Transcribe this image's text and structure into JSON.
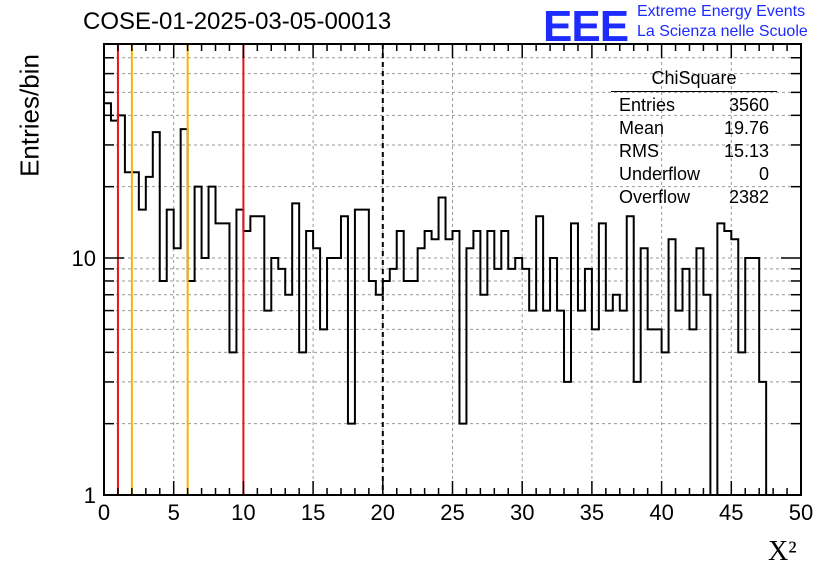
{
  "title": "COSE-01-2025-03-05-00013",
  "logo": {
    "text": "EEE",
    "line1": "Extreme Energy Events",
    "line2": "La Scienza nelle Scuole",
    "color": "#1e2bff"
  },
  "colors": {
    "red": "#e8141c",
    "yellow": "#f7b500",
    "black": "#000000",
    "grid": "#999999"
  },
  "stats": {
    "title": "ChiSquare",
    "rows": [
      {
        "label": "Entries",
        "value": "3560"
      },
      {
        "label": "Mean",
        "value": "19.76"
      },
      {
        "label": "RMS",
        "value": "15.13"
      },
      {
        "label": "Underflow",
        "value": "0"
      },
      {
        "label": "Overflow",
        "value": "2382"
      }
    ]
  },
  "chart_data": {
    "type": "histogram",
    "title": "COSE-01-2025-03-05-00013",
    "xlabel": "X²",
    "ylabel": "Entries/bin",
    "xlim": [
      0,
      50
    ],
    "ylim": [
      1,
      80
    ],
    "yscale": "log",
    "grid": true,
    "bin_width": 0.5,
    "xticks": [
      0,
      5,
      10,
      15,
      20,
      25,
      30,
      35,
      40,
      45,
      50
    ],
    "xtick_labels": [
      "0",
      "5",
      "10",
      "15",
      "20",
      "25",
      "30",
      "35",
      "40",
      "45",
      "50"
    ],
    "yticks": [
      1,
      10
    ],
    "ytick_labels": [
      "1",
      "10"
    ],
    "values": [
      45,
      38,
      40,
      23,
      23,
      16,
      22,
      34,
      8,
      16,
      11,
      35,
      8,
      20,
      10,
      20,
      14,
      14,
      4,
      16,
      13,
      15,
      15,
      6,
      10,
      9,
      7,
      17,
      4,
      13,
      11,
      5,
      10,
      10,
      15,
      2,
      16,
      16,
      8,
      7,
      8,
      9,
      13,
      8,
      8,
      11,
      13,
      12,
      18,
      12,
      13,
      2,
      11,
      13,
      7,
      13,
      9,
      13,
      9,
      10,
      9,
      6,
      15,
      6,
      10,
      6,
      3,
      14,
      6,
      9,
      5,
      14,
      6,
      7,
      6,
      15,
      3,
      11,
      5,
      5,
      4,
      12,
      6,
      9,
      5,
      11,
      7,
      1,
      14,
      13,
      12,
      4,
      10,
      10,
      3
    ],
    "vlines": [
      {
        "x": 1,
        "color": "red",
        "style": "solid"
      },
      {
        "x": 2,
        "color": "yellow",
        "style": "solid"
      },
      {
        "x": 6,
        "color": "yellow",
        "style": "solid"
      },
      {
        "x": 10,
        "color": "red",
        "style": "solid"
      },
      {
        "x": 20,
        "color": "black",
        "style": "dashed"
      }
    ]
  }
}
